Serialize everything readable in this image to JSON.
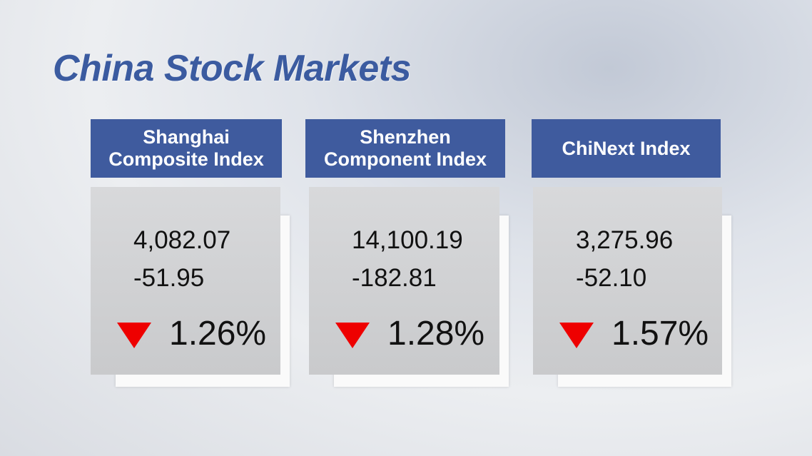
{
  "title": "China Stock Markets",
  "cards": [
    {
      "name_lines": [
        "Shanghai",
        "Composite Index"
      ],
      "close": "4,082.07",
      "change": "-51.95",
      "percent": "1.26%"
    },
    {
      "name_lines": [
        "Shenzhen",
        "Component Index"
      ],
      "close": "14,100.19",
      "change": "-182.81",
      "percent": "1.28%"
    },
    {
      "name_lines": [
        "ChiNext Index"
      ],
      "close": "3,275.96",
      "change": "-52.10",
      "percent": "1.57%"
    }
  ]
}
